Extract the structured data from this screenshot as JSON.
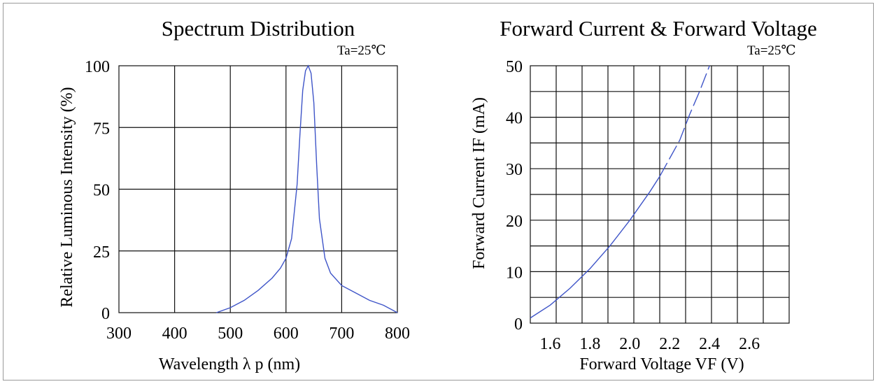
{
  "chart_data": [
    {
      "type": "line",
      "title": "Spectrum Distribution",
      "annotation": "Ta=25℃",
      "xlabel": "Wavelength  λ p (nm)",
      "ylabel": "Relative Luminous Intensity (%)",
      "xlim": [
        300,
        800
      ],
      "ylim": [
        0,
        100
      ],
      "x_ticks": [
        "300",
        "400",
        "500",
        "600",
        "700",
        "800"
      ],
      "y_ticks": [
        "0",
        "25",
        "50",
        "75",
        "100"
      ],
      "grid": true,
      "series": [
        {
          "color": "#3f55c8",
          "x": [
            475,
            500,
            525,
            550,
            575,
            590,
            600,
            610,
            620,
            625,
            630,
            635,
            640,
            645,
            650,
            655,
            660,
            670,
            680,
            700,
            725,
            750,
            775,
            800
          ],
          "y": [
            0,
            2,
            5,
            9,
            14,
            18,
            22,
            30,
            52,
            72,
            90,
            98,
            100,
            97,
            85,
            60,
            38,
            22,
            16,
            11,
            8,
            5,
            3,
            0
          ]
        }
      ]
    },
    {
      "type": "line",
      "title": "Forward Current & Forward Voltage",
      "annotation": "Ta=25℃",
      "xlabel": "Forward Voltage  VF (V)",
      "ylabel": "Forward Current IF (mA)",
      "xlim": [
        1.5,
        2.8
      ],
      "ylim": [
        0,
        50
      ],
      "x_ticks": [
        "1.6",
        "1.8",
        "2.0",
        "2.2",
        "2.4",
        "2.6"
      ],
      "y_ticks": [
        "0",
        "10",
        "20",
        "30",
        "40",
        "50"
      ],
      "grid": true,
      "series": [
        {
          "color": "#3f55c8",
          "solid": {
            "x": [
              1.5,
              1.6,
              1.7,
              1.8,
              1.9,
              2.0,
              2.1,
              2.15
            ],
            "y": [
              1,
              3.5,
              6.8,
              10.6,
              15,
              20,
              25.5,
              28.5
            ]
          },
          "dashed": {
            "x": [
              2.15,
              2.2,
              2.25,
              2.3,
              2.35,
              2.4
            ],
            "y": [
              28.5,
              32,
              35.5,
              40.5,
              45,
              50
            ]
          }
        }
      ]
    }
  ]
}
